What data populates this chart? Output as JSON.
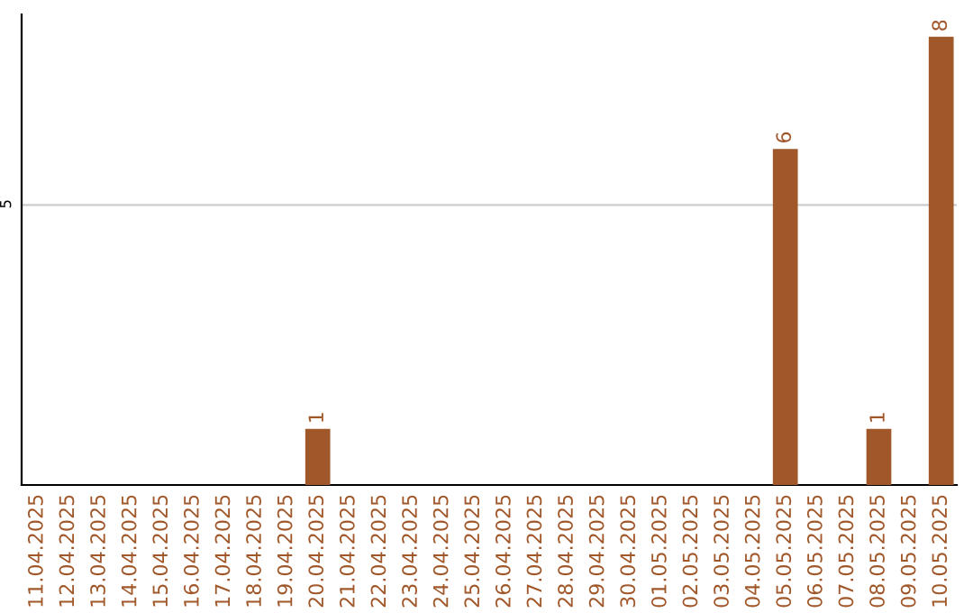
{
  "chart_data": {
    "type": "bar",
    "categories": [
      "11.04.2025",
      "12.04.2025",
      "13.04.2025",
      "14.04.2025",
      "15.04.2025",
      "16.04.2025",
      "17.04.2025",
      "18.04.2025",
      "19.04.2025",
      "20.04.2025",
      "21.04.2025",
      "22.04.2025",
      "23.04.2025",
      "24.04.2025",
      "25.04.2025",
      "26.04.2025",
      "27.04.2025",
      "28.04.2025",
      "29.04.2025",
      "30.04.2025",
      "01.05.2025",
      "02.05.2025",
      "03.05.2025",
      "04.05.2025",
      "05.05.2025",
      "06.05.2025",
      "07.05.2025",
      "08.05.2025",
      "09.05.2025",
      "10.05.2025"
    ],
    "values": [
      0,
      0,
      0,
      0,
      0,
      0,
      0,
      0,
      0,
      1,
      0,
      0,
      0,
      0,
      0,
      0,
      0,
      0,
      0,
      0,
      0,
      0,
      0,
      0,
      6,
      0,
      0,
      1,
      0,
      8
    ],
    "value_labels": [
      null,
      null,
      null,
      null,
      null,
      null,
      null,
      null,
      null,
      "1",
      null,
      null,
      null,
      null,
      null,
      null,
      null,
      null,
      null,
      null,
      null,
      null,
      null,
      null,
      "6",
      null,
      null,
      "1",
      null,
      "8"
    ],
    "color": "#a0582b",
    "ylim": [
      0,
      8.4
    ],
    "yticks": [
      5
    ],
    "grid": "y"
  }
}
